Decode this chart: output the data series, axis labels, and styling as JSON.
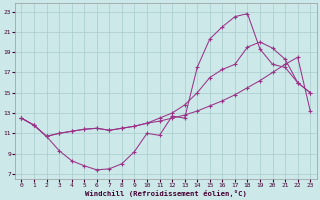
{
  "xlabel": "Windchill (Refroidissement éolien,°C)",
  "bg_color": "#cce8e8",
  "grid_color": "#a8cccc",
  "line_color": "#993388",
  "xlim": [
    -0.5,
    23.5
  ],
  "ylim": [
    6.5,
    23.8
  ],
  "yticks": [
    7,
    9,
    11,
    13,
    15,
    17,
    19,
    21,
    23
  ],
  "xticks": [
    0,
    1,
    2,
    3,
    4,
    5,
    6,
    7,
    8,
    9,
    10,
    11,
    12,
    13,
    14,
    15,
    16,
    17,
    18,
    19,
    20,
    21,
    22,
    23
  ],
  "line1_x": [
    0,
    1,
    2,
    3,
    4,
    5,
    6,
    7,
    8,
    9,
    10,
    11,
    12,
    13,
    14,
    15,
    16,
    17,
    18,
    19,
    20,
    21,
    22,
    23
  ],
  "line1_y": [
    12.5,
    11.8,
    10.7,
    9.3,
    8.3,
    7.8,
    7.4,
    7.5,
    8.0,
    9.2,
    11.0,
    10.8,
    12.7,
    12.5,
    17.5,
    20.3,
    21.5,
    22.5,
    22.8,
    19.3,
    17.8,
    17.5,
    16.0,
    15.0
  ],
  "line2_x": [
    0,
    1,
    2,
    3,
    4,
    5,
    6,
    7,
    8,
    9,
    10,
    11,
    12,
    13,
    14,
    15,
    16,
    17,
    18,
    19,
    20,
    21,
    22,
    23
  ],
  "line2_y": [
    12.5,
    11.8,
    10.7,
    11.0,
    11.2,
    11.4,
    11.5,
    11.3,
    11.5,
    11.7,
    12.0,
    12.5,
    13.0,
    13.8,
    15.0,
    16.5,
    17.3,
    17.8,
    19.5,
    20.0,
    19.4,
    18.3,
    16.0,
    15.0
  ],
  "line3_x": [
    0,
    1,
    2,
    3,
    4,
    5,
    6,
    7,
    8,
    9,
    10,
    11,
    12,
    13,
    14,
    15,
    16,
    17,
    18,
    19,
    20,
    21,
    22,
    23
  ],
  "line3_y": [
    12.5,
    11.8,
    10.7,
    11.0,
    11.2,
    11.4,
    11.5,
    11.3,
    11.5,
    11.7,
    12.0,
    12.2,
    12.5,
    12.8,
    13.2,
    13.7,
    14.2,
    14.8,
    15.5,
    16.2,
    17.0,
    17.8,
    18.5,
    13.2
  ]
}
